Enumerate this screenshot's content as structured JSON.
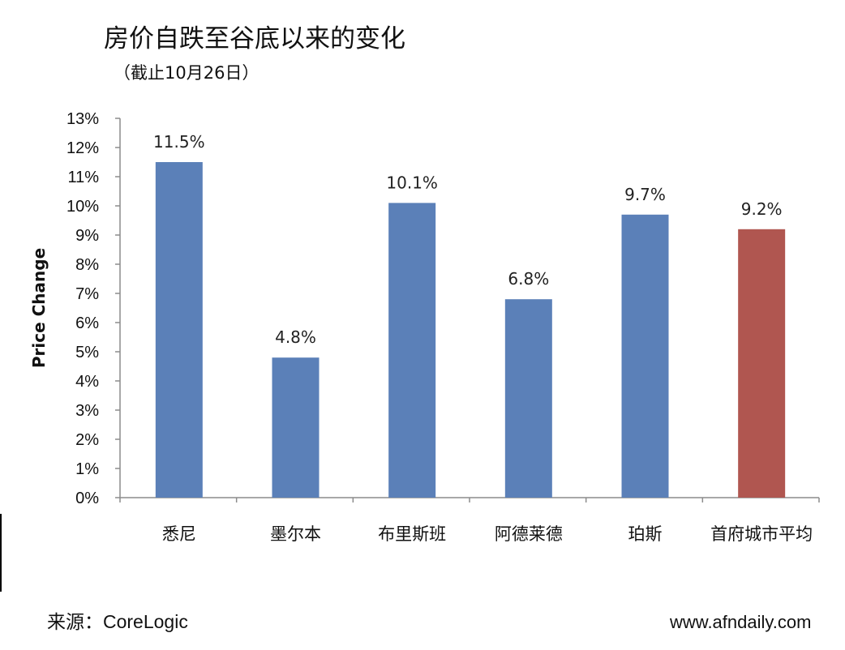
{
  "header": {
    "title": "房价自跌至谷底以来的变化",
    "subtitle": "（截止10月26日）"
  },
  "footer": {
    "source": "来源：CoreLogic",
    "website": "www.afndaily.com"
  },
  "chart_data": {
    "type": "bar",
    "title": "房价自跌至谷底以来的变化",
    "subtitle": "（截止10月26日）",
    "ylabel": "Price Change",
    "xlabel": "",
    "categories": [
      "悉尼",
      "墨尔本",
      "布里斯班",
      "阿德莱德",
      "珀斯",
      "首府城市平均"
    ],
    "values": [
      11.5,
      4.8,
      10.1,
      6.8,
      9.7,
      9.2
    ],
    "data_labels": [
      "11.5%",
      "4.8%",
      "10.1%",
      "6.8%",
      "9.7%",
      "9.2%"
    ],
    "bar_colors": [
      "#5b80b8",
      "#5b80b8",
      "#5b80b8",
      "#5b80b8",
      "#5b80b8",
      "#b05650"
    ],
    "ylim": [
      0,
      13
    ],
    "yticks": [
      "0%",
      "1%",
      "2%",
      "3%",
      "4%",
      "5%",
      "6%",
      "7%",
      "8%",
      "9%",
      "10%",
      "11%",
      "12%",
      "13%"
    ],
    "grid": false,
    "legend": "none"
  }
}
